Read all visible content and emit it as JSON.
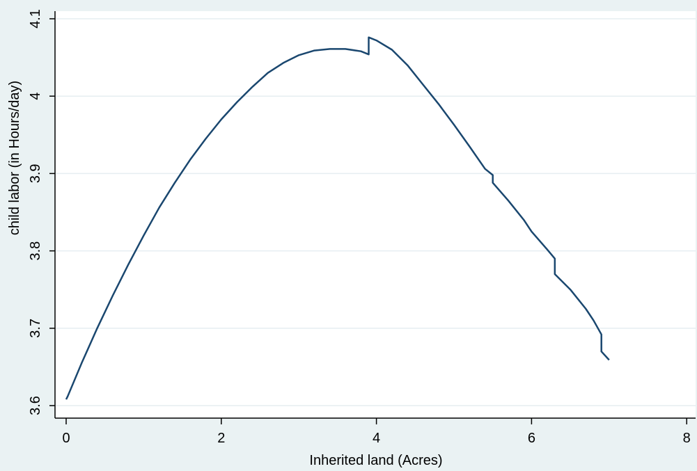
{
  "chart_data": {
    "type": "line",
    "title": "",
    "xlabel": "Inherited land (Acres)",
    "ylabel": "child labor (in Hours/day)",
    "xlim": [
      0,
      8
    ],
    "ylim": [
      3.6,
      4.1
    ],
    "xticks": [
      "0",
      "2",
      "4",
      "6",
      "8"
    ],
    "yticks": [
      "3.6",
      "3.7",
      "3.8",
      "3.9",
      "4",
      "4.1"
    ],
    "grid": true,
    "series": [
      {
        "name": "",
        "color": "#1a476f",
        "x": [
          0,
          0.02,
          0.2,
          0.4,
          0.6,
          0.8,
          1.0,
          1.2,
          1.4,
          1.6,
          1.8,
          2.0,
          2.2,
          2.4,
          2.6,
          2.8,
          3.0,
          3.2,
          3.4,
          3.6,
          3.8,
          3.9,
          3.9,
          4.0,
          4.2,
          4.4,
          4.6,
          4.8,
          5.0,
          5.2,
          5.4,
          5.5,
          5.5,
          5.7,
          5.9,
          6.0,
          6.2,
          6.3,
          6.3,
          6.5,
          6.7,
          6.8,
          6.9,
          6.9,
          7.0
        ],
        "y": [
          3.608,
          3.612,
          3.655,
          3.7,
          3.742,
          3.782,
          3.82,
          3.856,
          3.888,
          3.918,
          3.945,
          3.97,
          3.992,
          4.012,
          4.03,
          4.043,
          4.053,
          4.059,
          4.061,
          4.061,
          4.058,
          4.054,
          4.076,
          4.072,
          4.06,
          4.04,
          4.015,
          3.99,
          3.963,
          3.935,
          3.906,
          3.898,
          3.888,
          3.865,
          3.84,
          3.825,
          3.802,
          3.79,
          3.77,
          3.75,
          3.725,
          3.71,
          3.692,
          3.67,
          3.659
        ]
      }
    ]
  }
}
